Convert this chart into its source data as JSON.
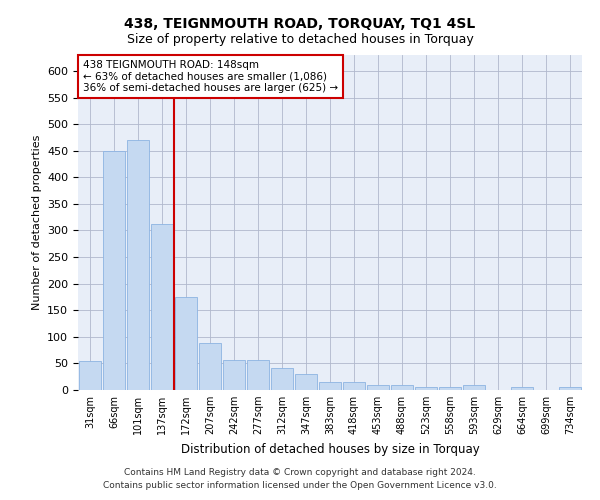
{
  "title": "438, TEIGNMOUTH ROAD, TORQUAY, TQ1 4SL",
  "subtitle": "Size of property relative to detached houses in Torquay",
  "xlabel": "Distribution of detached houses by size in Torquay",
  "ylabel": "Number of detached properties",
  "bar_color": "#c5d9f1",
  "bar_edge_color": "#8db4e2",
  "categories": [
    "31sqm",
    "66sqm",
    "101sqm",
    "137sqm",
    "172sqm",
    "207sqm",
    "242sqm",
    "277sqm",
    "312sqm",
    "347sqm",
    "383sqm",
    "418sqm",
    "453sqm",
    "488sqm",
    "523sqm",
    "558sqm",
    "593sqm",
    "629sqm",
    "664sqm",
    "699sqm",
    "734sqm"
  ],
  "values": [
    55,
    450,
    470,
    312,
    175,
    88,
    57,
    57,
    41,
    30,
    15,
    15,
    10,
    10,
    6,
    6,
    9,
    0,
    5,
    0,
    5
  ],
  "ylim": [
    0,
    630
  ],
  "yticks": [
    0,
    50,
    100,
    150,
    200,
    250,
    300,
    350,
    400,
    450,
    500,
    550,
    600
  ],
  "vline_x_index": 3,
  "vline_color": "#cc0000",
  "ann_line1": "438 TEIGNMOUTH ROAD: 148sqm",
  "ann_line2": "← 63% of detached houses are smaller (1,086)",
  "ann_line3": "36% of semi-detached houses are larger (625) →",
  "annotation_box_color": "#ffffff",
  "annotation_box_edge": "#cc0000",
  "footer_line1": "Contains HM Land Registry data © Crown copyright and database right 2024.",
  "footer_line2": "Contains public sector information licensed under the Open Government Licence v3.0.",
  "background_color": "#e8eef8",
  "grid_color": "#b0b8cc"
}
